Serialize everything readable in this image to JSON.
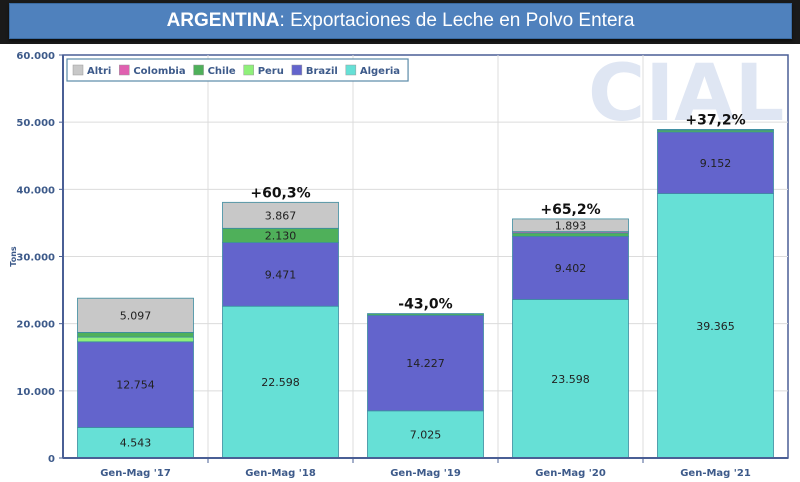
{
  "header": {
    "title_bold": "ARGENTINA",
    "title_rest": ": Exportaciones de Leche en Polvo Entera"
  },
  "watermark": "CIAL",
  "chart_data": {
    "type": "bar",
    "stacked": true,
    "title": "ARGENTINA: Exportaciones de Leche en Polvo Entera",
    "xlabel": "",
    "ylabel": "Tons",
    "ylim": [
      0,
      60000
    ],
    "yticks": [
      0,
      10000,
      20000,
      30000,
      40000,
      50000,
      60000
    ],
    "ytick_labels": [
      "0",
      "10.000",
      "20.000",
      "30.000",
      "40.000",
      "50.000",
      "60.000"
    ],
    "grid": true,
    "legend_position": "top-left",
    "categories": [
      "Gen-Mag '17",
      "Gen-Mag '18",
      "Gen-Mag '19",
      "Gen-Mag '20",
      "Gen-Mag '21"
    ],
    "series": [
      {
        "name": "Algeria",
        "color": "#66e0d6",
        "values": [
          4543,
          22598,
          7025,
          23598,
          39365
        ],
        "labels": [
          "4.543",
          "22.598",
          "7.025",
          "23.598",
          "39.365"
        ]
      },
      {
        "name": "Brazil",
        "color": "#6364cc",
        "values": [
          12754,
          9471,
          14227,
          9402,
          9152
        ],
        "labels": [
          "12.754",
          "9.471",
          "14.227",
          "9.402",
          "9.152"
        ]
      },
      {
        "name": "Peru",
        "color": "#8ff07a",
        "values": [
          700,
          0,
          0,
          0,
          0
        ],
        "labels": [
          "",
          "",
          "",
          "",
          ""
        ]
      },
      {
        "name": "Chile",
        "color": "#4fb05a",
        "values": [
          700,
          2130,
          250,
          500,
          300
        ],
        "labels": [
          "",
          "2.130",
          "",
          "",
          ""
        ]
      },
      {
        "name": "Colombia",
        "color": "#e060b0",
        "values": [
          0,
          0,
          0,
          200,
          0
        ],
        "labels": [
          "",
          "",
          "",
          "",
          ""
        ]
      },
      {
        "name": "Altri",
        "color": "#c8c8c8",
        "values": [
          5097,
          3867,
          0,
          1893,
          100
        ],
        "labels": [
          "5.097",
          "3.867",
          "",
          "1.893",
          ""
        ]
      }
    ],
    "legend_order": [
      "Altri",
      "Colombia",
      "Chile",
      "Peru",
      "Brazil",
      "Algeria"
    ],
    "annotations": [
      "",
      "+60,3%",
      "-43,0%",
      "+65,2%",
      "+37,2%"
    ]
  }
}
